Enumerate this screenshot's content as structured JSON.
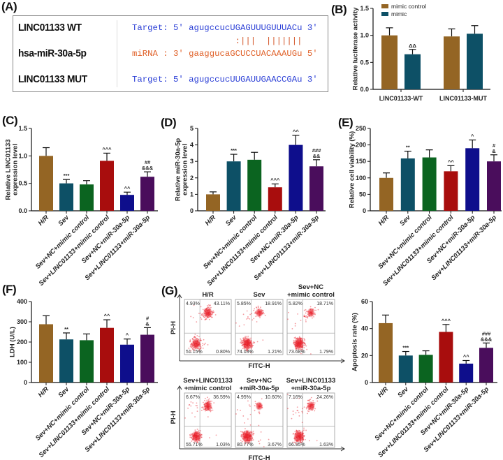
{
  "panel_labels": {
    "A": "(A)",
    "B": "(B)",
    "C": "(C)",
    "D": "(D)",
    "E": "(E)",
    "F": "(F)",
    "G": "(G)"
  },
  "panel_a": {
    "rows": [
      {
        "name": "LINC01133 WT",
        "seq": "Target: 5' agugccucUGAGUUUGUUUACu 3'",
        "color": "#2b3fd6"
      },
      {
        "name": "hsa-miR-30a-5p",
        "seq": "miRNA : 3' gaaggucaGCUCCUACAAAUGu 5'",
        "color": "#e0622a"
      },
      {
        "name": "LINC01133 MUT",
        "seq": "Target: 5' agugccucUUGAUUGAACCGAu 3'",
        "color": "#2b3fd6"
      }
    ],
    "pairing": ":|||  |||||||"
  },
  "chart_data": [
    {
      "id": "B",
      "type": "bar",
      "title": "",
      "ylabel": "Relative luciferase activity",
      "xlabel": "",
      "ylim": [
        0,
        1.5
      ],
      "yticks": [
        0,
        0.5,
        1.0,
        1.5
      ],
      "ytick_labels": [
        "0.0",
        "0.5",
        "1.0",
        "1.5"
      ],
      "categories": [
        "LINC01133-WT",
        "LINC01133-MUT"
      ],
      "legend": "top",
      "series": [
        {
          "name": "mimic control",
          "color": "#946524",
          "values": [
            1.0,
            0.98
          ],
          "errors": [
            0.14,
            0.14
          ],
          "annotations": [
            "",
            ""
          ]
        },
        {
          "name": "mimic",
          "color": "#0d5066",
          "values": [
            0.65,
            1.03
          ],
          "errors": [
            0.09,
            0.15
          ],
          "annotations": [
            "ΔΔ",
            ""
          ]
        }
      ]
    },
    {
      "id": "C",
      "type": "bar",
      "ylabel": [
        "Relative LINC01133",
        "expression level"
      ],
      "ylim": [
        0,
        1.5
      ],
      "yticks": [
        0,
        0.5,
        1.0,
        1.5
      ],
      "ytick_labels": [
        "0.0",
        "0.5",
        "1.0",
        "1.5"
      ],
      "categories": [
        "H/R",
        "Sev",
        "Sev+NC+mimic control",
        "Sev+LINC01133+mimic control",
        "Sev+NC+miR-30a-5p",
        "Sev+LINC01133+miR-30a-5p"
      ],
      "colors": [
        "#946524",
        "#0d5066",
        "#0b6420",
        "#a80d0d",
        "#0e0e8c",
        "#4a0d5c"
      ],
      "values": [
        1.0,
        0.5,
        0.48,
        0.91,
        0.29,
        0.62
      ],
      "errors": [
        0.15,
        0.07,
        0.07,
        0.14,
        0.05,
        0.09
      ],
      "annotations": [
        [],
        [
          "***"
        ],
        [],
        [
          "^^^"
        ],
        [
          "^^"
        ],
        [
          "##",
          "&&&"
        ]
      ]
    },
    {
      "id": "D",
      "type": "bar",
      "ylabel": [
        "Relative miR-30a-5p",
        "expression level"
      ],
      "ylim": [
        0,
        5
      ],
      "yticks": [
        0,
        1,
        2,
        3,
        4,
        5
      ],
      "ytick_labels": [
        "0",
        "1",
        "2",
        "3",
        "4",
        "5"
      ],
      "categories": [
        "H/R",
        "Sev",
        "Sev+NC+mimic control",
        "Sev+LINC01133+mimic control",
        "Sev+NC+miR-30a-5p",
        "Sev+LINC01133+miR-30a-5p"
      ],
      "colors": [
        "#946524",
        "#0d5066",
        "#0b6420",
        "#a80d0d",
        "#0e0e8c",
        "#4a0d5c"
      ],
      "values": [
        1.0,
        3.0,
        3.1,
        1.43,
        4.0,
        2.7
      ],
      "errors": [
        0.15,
        0.43,
        0.45,
        0.2,
        0.58,
        0.4
      ],
      "annotations": [
        [],
        [
          "***"
        ],
        [],
        [
          "^^^"
        ],
        [
          "^^"
        ],
        [
          "###",
          "&&"
        ]
      ]
    },
    {
      "id": "E",
      "type": "bar",
      "ylabel": [
        "Relative cell viability (%)"
      ],
      "ylim": [
        0,
        250
      ],
      "yticks": [
        0,
        50,
        100,
        150,
        200,
        250
      ],
      "ytick_labels": [
        "0",
        "50",
        "100",
        "150",
        "200",
        "250"
      ],
      "categories": [
        "H/R",
        "Sev",
        "Sev+NC+mimic control",
        "Sev+LINC01133+mimic control",
        "Sev+NC+miR-30a-5p",
        "Sev+LINC01133+miR-30a-5p"
      ],
      "colors": [
        "#946524",
        "#0d5066",
        "#0b6420",
        "#a80d0d",
        "#0e0e8c",
        "#4a0d5c"
      ],
      "values": [
        100,
        159,
        162,
        120,
        190,
        150
      ],
      "errors": [
        15,
        22,
        23,
        17,
        25,
        20
      ],
      "annotations": [
        [],
        [
          "**"
        ],
        [],
        [
          "^^"
        ],
        [
          "^"
        ],
        [
          "#",
          "&"
        ]
      ]
    },
    {
      "id": "F",
      "type": "bar",
      "ylabel": [
        "LDH (U/L)"
      ],
      "ylim": [
        0,
        400
      ],
      "yticks": [
        0,
        100,
        200,
        300,
        400
      ],
      "ytick_labels": [
        "0",
        "100",
        "200",
        "300",
        "400"
      ],
      "categories": [
        "H/R",
        "Sev",
        "Sev+NC+mimic control",
        "Sev+LINC01133+mimic control",
        "Sev+NC+miR-30a-5p",
        "Sev+LINC01133+miR-30a-5p"
      ],
      "colors": [
        "#946524",
        "#0d5066",
        "#0b6420",
        "#a80d0d",
        "#0e0e8c",
        "#4a0d5c"
      ],
      "values": [
        288,
        213,
        209,
        270,
        187,
        236
      ],
      "errors": [
        42,
        32,
        31,
        40,
        28,
        35
      ],
      "annotations": [
        [],
        [
          "**"
        ],
        [],
        [
          "^^"
        ],
        [
          "^"
        ],
        [
          "#",
          "&"
        ]
      ]
    },
    {
      "id": "G",
      "type": "bar",
      "ylabel": [
        "Apoptosis rate (%)"
      ],
      "ylim": [
        0,
        60
      ],
      "yticks": [
        0,
        20,
        40,
        60
      ],
      "ytick_labels": [
        "0",
        "20",
        "40",
        "60"
      ],
      "categories": [
        "H/R",
        "Sev",
        "Sev+NC+mimic control",
        "Sev+LINC01133+mimic control",
        "Sev+NC+miR-30a-5p",
        "Sev+LINC01133+miR-30a-5p"
      ],
      "colors": [
        "#946524",
        "#0d5066",
        "#0b6420",
        "#a80d0d",
        "#0e0e8c",
        "#4a0d5c"
      ],
      "values": [
        44,
        20,
        20.5,
        37.5,
        14,
        25.7
      ],
      "errors": [
        6,
        3,
        3,
        5.5,
        2.3,
        3.6
      ],
      "annotations": [
        [],
        [
          "***"
        ],
        [],
        [
          "^^^"
        ],
        [
          "^^"
        ],
        [
          "###",
          "&&&"
        ]
      ]
    }
  ],
  "flow": {
    "xlabel": "FITC-H",
    "ylabel": "PI-H",
    "dot_color": "#e8202a",
    "panels": [
      {
        "title": [
          "H/R"
        ],
        "ul": "4.93%",
        "ur": "43.11%",
        "ll": "51.15%",
        "lr": "0.80%"
      },
      {
        "title": [
          "Sev"
        ],
        "ul": "5.85%",
        "ur": "18.91%",
        "ll": "74.03%",
        "lr": "1.21%"
      },
      {
        "title": [
          "Sev+NC",
          "+mimic control"
        ],
        "ul": "5.82%",
        "ur": "18.71%",
        "ll": "73.68%",
        "lr": "1.79%"
      },
      {
        "title": [
          "Sev+LINC01133",
          "+mimic control"
        ],
        "ul": "6.67%",
        "ur": "36.59%",
        "ll": "55.71%",
        "lr": "1.03%"
      },
      {
        "title": [
          "Sev+NC",
          "+miR-30a-5p"
        ],
        "ul": "4.95%",
        "ur": "10.60%",
        "ll": "80.77%",
        "lr": "3.67%"
      },
      {
        "title": [
          "Sev+LINC01133",
          "+miR-30a-5p"
        ],
        "ul": "7.16%",
        "ur": "24.26%",
        "ll": "66.95%",
        "lr": "1.63%"
      }
    ]
  }
}
